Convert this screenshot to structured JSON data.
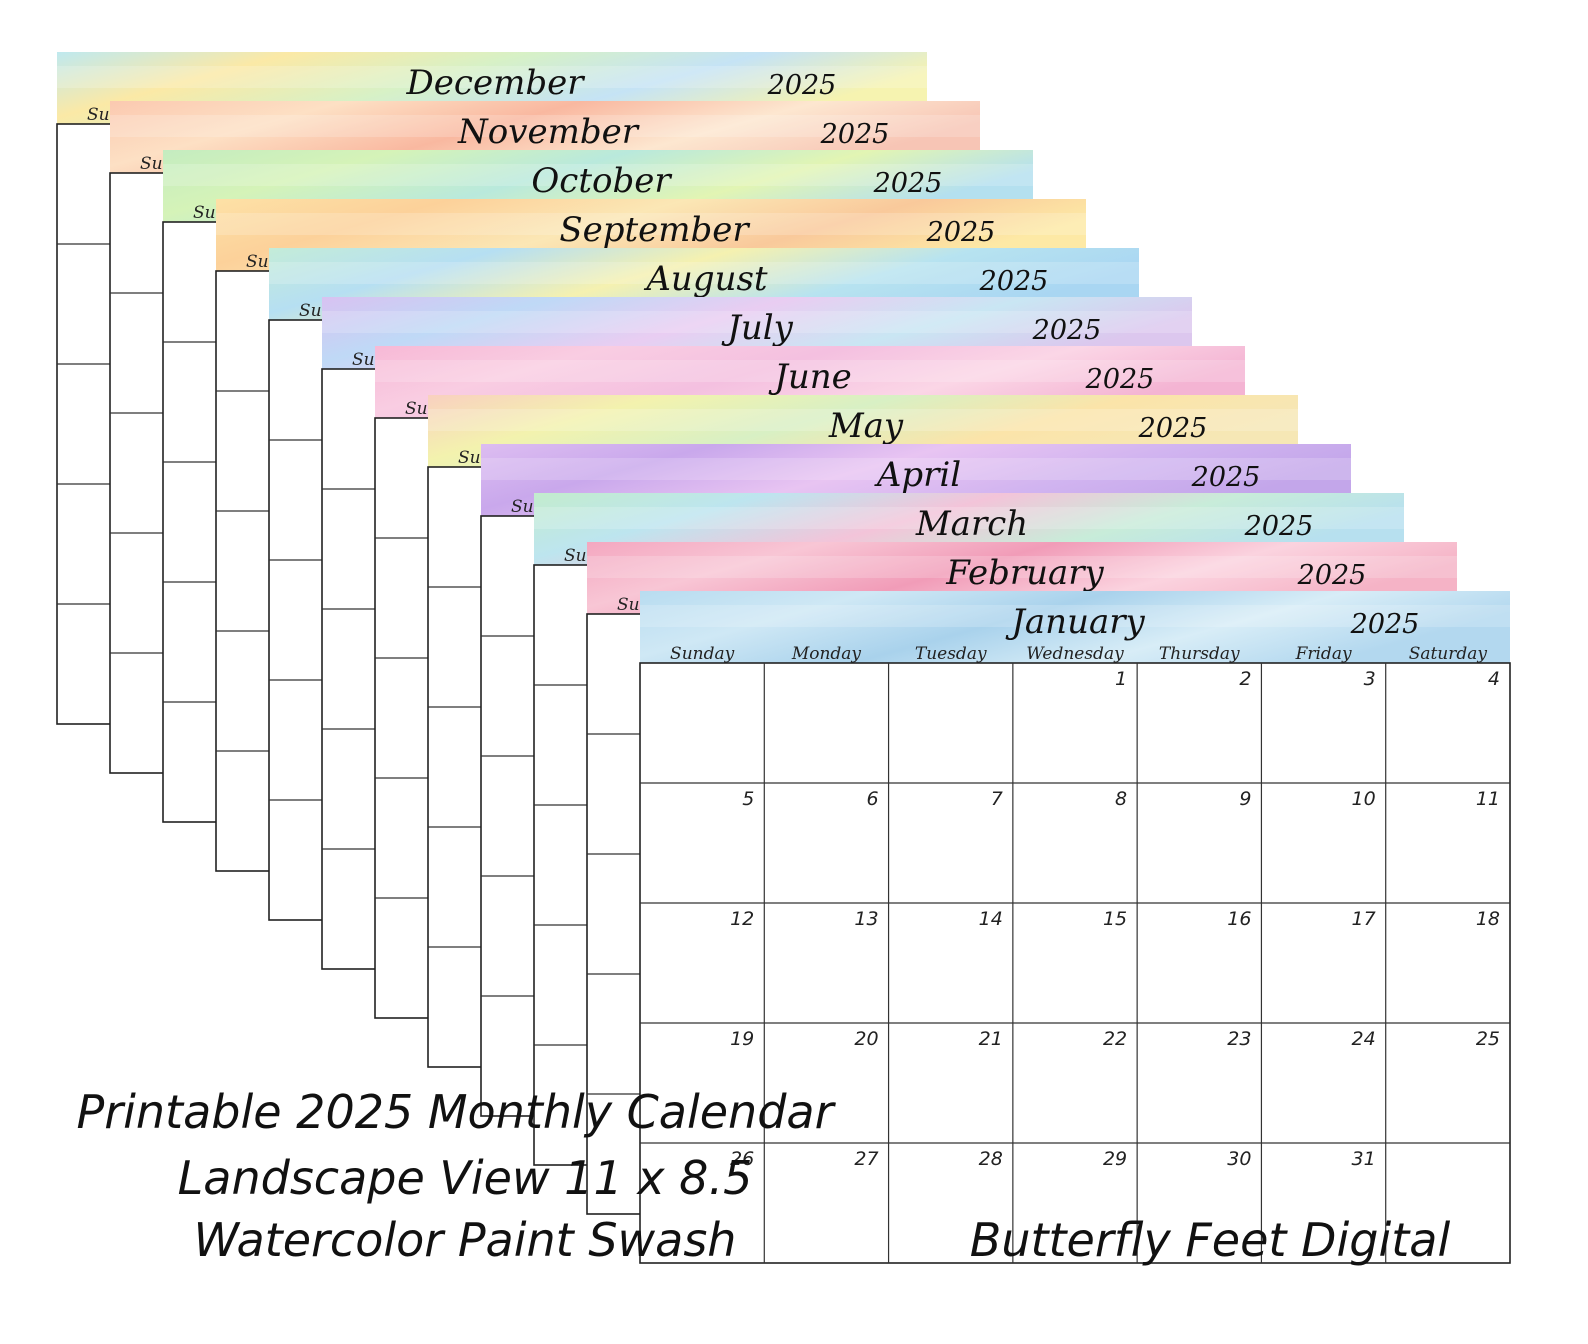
{
  "sheets": [
    {
      "month": "December",
      "year": "2025",
      "day_label": "Su"
    },
    {
      "month": "November",
      "year": "2025",
      "day_label": "Su"
    },
    {
      "month": "October",
      "year": "2025",
      "day_label": "Su"
    },
    {
      "month": "September",
      "year": "2025",
      "day_label": "Su"
    },
    {
      "month": "August",
      "year": "2025",
      "day_label": "Su"
    },
    {
      "month": "July",
      "year": "2025",
      "day_label": "Su"
    },
    {
      "month": "June",
      "year": "2025",
      "day_label": "Su"
    },
    {
      "month": "May",
      "year": "2025",
      "day_label": "Su"
    },
    {
      "month": "April",
      "year": "2025",
      "day_label": "Su"
    },
    {
      "month": "March",
      "year": "2025",
      "day_label": "Su"
    },
    {
      "month": "February",
      "year": "2025",
      "day_label": "Su"
    },
    {
      "month": "January",
      "year": "2025",
      "weekdays": [
        "Sunday",
        "Monday",
        "Tuesday",
        "Wednesday",
        "Thursday",
        "Friday",
        "Saturday"
      ],
      "weeks": [
        [
          null,
          null,
          null,
          1,
          2,
          3,
          4
        ],
        [
          5,
          6,
          7,
          8,
          9,
          10,
          11
        ],
        [
          12,
          13,
          14,
          15,
          16,
          17,
          18
        ],
        [
          19,
          20,
          21,
          22,
          23,
          24,
          25
        ],
        [
          26,
          27,
          28,
          29,
          30,
          31,
          null
        ]
      ]
    }
  ],
  "caption": {
    "lines": [
      "Printable 2025 Monthly Calendar",
      "Landscape View 11 x 8.5",
      "Watercolor Paint Swash"
    ]
  },
  "brand": "Butterfly Feet Digital"
}
